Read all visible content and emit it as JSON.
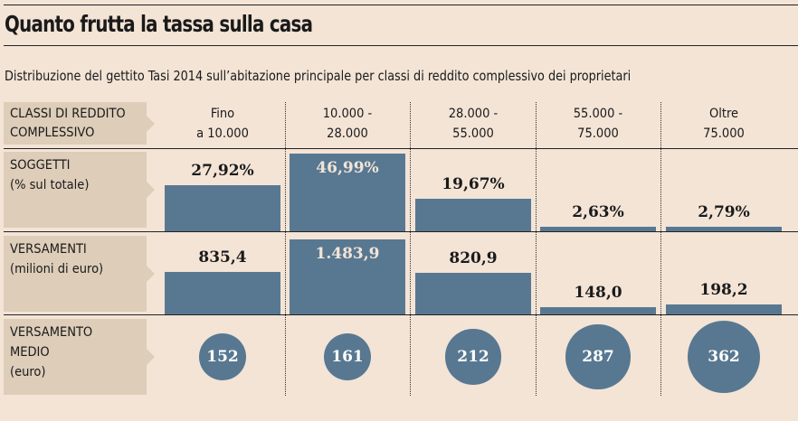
{
  "title": "Quanto frutta la tassa sulla casa",
  "subtitle": "Distribuzione del gettito Tasi 2014 sull’abitazione principale per classi di reddito complessivo dei proprietari",
  "chart_data": {
    "type": "table",
    "row_labels": {
      "classes": "CLASSI DI REDDITO COMPLESSIVO",
      "soggetti": "SOGGETTI (% sul totale)",
      "versamenti": "VERSAMENTI (milioni di euro)",
      "medio": "VERSAMENTO MEDIO (euro)"
    },
    "row_label_lines": {
      "classes": [
        "CLASSI DI REDDITO",
        "COMPLESSIVO"
      ],
      "soggetti": [
        "SOGGETTI",
        "(% sul totale)"
      ],
      "versamenti": [
        "VERSAMENTI",
        "(milioni di euro)"
      ],
      "medio": [
        "VERSAMENTO",
        "MEDIO",
        "(euro)"
      ]
    },
    "categories": [
      [
        "Fino",
        "a 10.000"
      ],
      [
        "10.000 -",
        "28.000"
      ],
      [
        "28.000 -",
        "55.000"
      ],
      [
        "55.000 -",
        "75.000"
      ],
      [
        "Oltre",
        "75.000"
      ]
    ],
    "series": [
      {
        "name": "SOGGETTI",
        "type": "bar",
        "values": [
          27.92,
          46.99,
          19.67,
          2.63,
          2.79
        ],
        "labels": [
          "27,92%",
          "46,99%",
          "19,67%",
          "2,63%",
          "2,79%"
        ]
      },
      {
        "name": "VERSAMENTI",
        "type": "bar",
        "values": [
          835.4,
          1483.9,
          820.9,
          148.0,
          198.2
        ],
        "labels": [
          "835,4",
          "1.483,9",
          "820,9",
          "148,0",
          "198,2"
        ]
      },
      {
        "name": "VERSAMENTO MEDIO",
        "type": "bubble",
        "values": [
          152,
          161,
          212,
          287,
          362
        ],
        "labels": [
          "152",
          "161",
          "212",
          "287",
          "362"
        ]
      }
    ],
    "color": "#587891"
  }
}
